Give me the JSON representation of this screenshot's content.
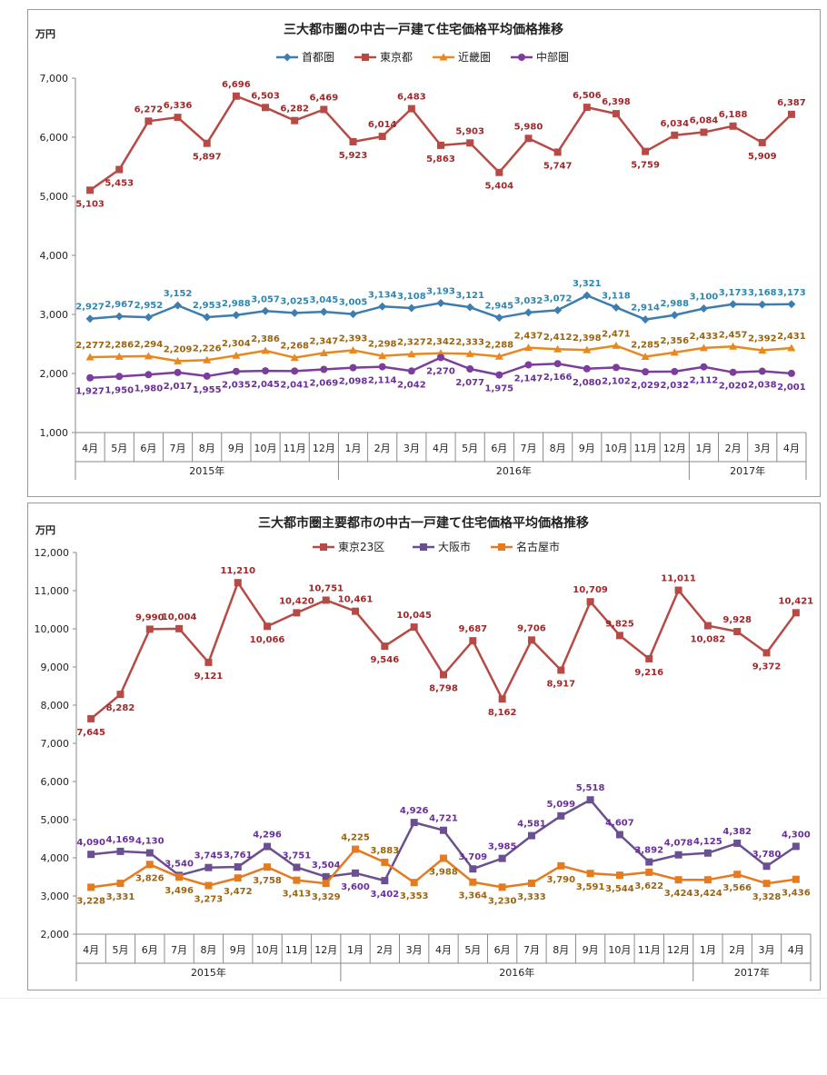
{
  "charts": [
    {
      "type": "line",
      "title": "三大都市圏の中古一戸建て住宅価格平均価格推移",
      "unit": "万円",
      "ylim": [
        1000,
        7000
      ],
      "yticks": [
        1000,
        2000,
        3000,
        4000,
        5000,
        6000,
        7000
      ],
      "ytick_labels": [
        "1,000",
        "2,000",
        "3,000",
        "4,000",
        "5,000",
        "6,000",
        "7,000"
      ],
      "categories": [
        "4月",
        "5月",
        "6月",
        "7月",
        "8月",
        "9月",
        "10月",
        "11月",
        "12月",
        "1月",
        "2月",
        "3月",
        "4月",
        "5月",
        "6月",
        "7月",
        "8月",
        "9月",
        "10月",
        "11月",
        "12月",
        "1月",
        "2月",
        "3月",
        "4月"
      ],
      "years": [
        {
          "label": "2015年",
          "count": 9
        },
        {
          "label": "2016年",
          "count": 12
        },
        {
          "label": "2017年",
          "count": 4
        }
      ],
      "legend_position": "top",
      "series": [
        {
          "name": "首都圏",
          "color": "#3E7DB0",
          "marker": "diamond",
          "label_color": "#2E86B0",
          "label_pos": "above",
          "values": [
            2927,
            2967,
            2952,
            3152,
            2953,
            2988,
            3057,
            3025,
            3045,
            3005,
            3134,
            3108,
            3193,
            3121,
            2945,
            3032,
            3072,
            3321,
            3118,
            2914,
            2988,
            3100,
            3173,
            3168,
            3173
          ],
          "labels": [
            "2,927",
            "2,967",
            "2,952",
            "3,152",
            "2,953",
            "2,988",
            "3,057",
            "3,025",
            "3,045",
            "3,005",
            "3,134",
            "3,108",
            "3,193",
            "3,121",
            "2,945",
            "3,032",
            "3,072",
            "3,321",
            "3,118",
            "2,914",
            "2,988",
            "3,100",
            "3,173",
            "3,168",
            "3,173"
          ]
        },
        {
          "name": "東京都",
          "color": "#B84A46",
          "marker": "square",
          "label_color": "#A0282A",
          "label_pos": [
            1,
            1,
            -1,
            -1,
            1,
            -1,
            -1,
            -1,
            -1,
            1,
            -1,
            -1,
            1,
            -1,
            1,
            -1,
            1,
            -1,
            -1,
            1,
            -1,
            -1,
            -1,
            1,
            -1
          ],
          "values": [
            5103,
            5453,
            6272,
            6336,
            5897,
            6696,
            6503,
            6282,
            6469,
            5923,
            6014,
            6483,
            5863,
            5903,
            5404,
            5980,
            5747,
            6506,
            6398,
            5759,
            6034,
            6084,
            6188,
            5909,
            6387
          ],
          "labels": [
            "5,103",
            "5,453",
            "6,272",
            "6,336",
            "5,897",
            "6,696",
            "6,503",
            "6,282",
            "6,469",
            "5,923",
            "6,014",
            "6,483",
            "5,863",
            "5,903",
            "5,404",
            "5,980",
            "5,747",
            "6,506",
            "6,398",
            "5,759",
            "6,034",
            "6,084",
            "6,188",
            "5,909",
            "6,387"
          ]
        },
        {
          "name": "近畿圏",
          "color": "#E8881E",
          "marker": "triangle",
          "label_color": "#9C6410",
          "label_pos": "above",
          "values": [
            2277,
            2286,
            2294,
            2209,
            2226,
            2304,
            2386,
            2268,
            2347,
            2393,
            2298,
            2327,
            2342,
            2333,
            2288,
            2437,
            2412,
            2398,
            2471,
            2285,
            2356,
            2433,
            2457,
            2392,
            2431
          ],
          "labels": [
            "2,277",
            "2,286",
            "2,294",
            "2,209",
            "2,226",
            "2,304",
            "2,386",
            "2,268",
            "2,347",
            "2,393",
            "2,298",
            "2,327",
            "2,342",
            "2,333",
            "2,288",
            "2,437",
            "2,412",
            "2,398",
            "2,471",
            "2,285",
            "2,356",
            "2,433",
            "2,457",
            "2,392",
            "2,431"
          ]
        },
        {
          "name": "中部圏",
          "color": "#7C3D9C",
          "marker": "circle",
          "label_color": "#6A2E9A",
          "label_pos": "below",
          "values": [
            1927,
            1950,
            1980,
            2017,
            1955,
            2035,
            2045,
            2041,
            2069,
            2098,
            2114,
            2042,
            2270,
            2077,
            1975,
            2147,
            2166,
            2080,
            2102,
            2029,
            2032,
            2112,
            2020,
            2038,
            2001
          ],
          "labels": [
            "1,927",
            "1,950",
            "1,980",
            "2,017",
            "1,955",
            "2,035",
            "2,045",
            "2,041",
            "2,069",
            "2,098",
            "2,114",
            "2,042",
            "2,270",
            "2,077",
            "1,975",
            "2,147",
            "2,166",
            "2,080",
            "2,102",
            "2,029",
            "2,032",
            "2,112",
            "2,020",
            "2,038",
            "2,001"
          ]
        }
      ]
    },
    {
      "type": "line",
      "title": "三大都市圏主要都市の中古一戸建て住宅価格平均価格推移",
      "unit": "万円",
      "ylim": [
        2000,
        12000
      ],
      "yticks": [
        2000,
        3000,
        4000,
        5000,
        6000,
        7000,
        8000,
        9000,
        10000,
        11000,
        12000
      ],
      "ytick_labels": [
        "2,000",
        "3,000",
        "4,000",
        "5,000",
        "6,000",
        "7,000",
        "8,000",
        "9,000",
        "10,000",
        "11,000",
        "12,000"
      ],
      "categories": [
        "4月",
        "5月",
        "6月",
        "7月",
        "8月",
        "9月",
        "10月",
        "11月",
        "12月",
        "1月",
        "2月",
        "3月",
        "4月",
        "5月",
        "6月",
        "7月",
        "8月",
        "9月",
        "10月",
        "11月",
        "12月",
        "1月",
        "2月",
        "3月",
        "4月"
      ],
      "years": [
        {
          "label": "2015年",
          "count": 9
        },
        {
          "label": "2016年",
          "count": 12
        },
        {
          "label": "2017年",
          "count": 4
        }
      ],
      "legend_position": "top",
      "series": [
        {
          "name": "東京23区",
          "color": "#B84A46",
          "marker": "square",
          "label_color": "#A0282A",
          "label_pos": [
            1,
            1,
            -1,
            -1,
            1,
            -1,
            1,
            -1,
            -1,
            -1,
            1,
            -1,
            1,
            -1,
            1,
            -1,
            1,
            -1,
            -1,
            1,
            -1,
            1,
            -1,
            1,
            -1
          ],
          "values": [
            7645,
            8282,
            9990,
            10004,
            9121,
            11210,
            10066,
            10420,
            10751,
            10461,
            9546,
            10045,
            8798,
            9687,
            8162,
            9706,
            8917,
            10709,
            9825,
            9216,
            11011,
            10082,
            9928,
            9372,
            10421
          ],
          "labels": [
            "7,645",
            "8,282",
            "9,990",
            "10,004",
            "9,121",
            "11,210",
            "10,066",
            "10,420",
            "10,751",
            "10,461",
            "9,546",
            "10,045",
            "8,798",
            "9,687",
            "8,162",
            "9,706",
            "8,917",
            "10,709",
            "9,825",
            "9,216",
            "11,011",
            "10,082",
            "9,928",
            "9,372",
            "10,421"
          ]
        },
        {
          "name": "大阪市",
          "color": "#6A4F91",
          "marker": "square",
          "label_color": "#6A2E9A",
          "label_pos": [
            -1,
            -1,
            -1,
            -1,
            -1,
            -1,
            -1,
            -1,
            -1,
            1,
            1,
            -1,
            -1,
            -1,
            -1,
            -1,
            -1,
            -1,
            -1,
            -1,
            -1,
            -1,
            -1,
            -1,
            -1
          ],
          "values": [
            4090,
            4169,
            4130,
            3540,
            3745,
            3761,
            4296,
            3751,
            3504,
            3600,
            3402,
            4926,
            4721,
            3709,
            3985,
            4581,
            5099,
            5518,
            4607,
            3892,
            4078,
            4125,
            4382,
            3780,
            4300
          ],
          "labels": [
            "4,090",
            "4,169",
            "4,130",
            "3,540",
            "3,745",
            "3,761",
            "4,296",
            "3,751",
            "3,504",
            "3,600",
            "3,402",
            "4,926",
            "4,721",
            "3,709",
            "3,985",
            "4,581",
            "5,099",
            "5,518",
            "4,607",
            "3,892",
            "4,078",
            "4,125",
            "4,382",
            "3,780",
            "4,300"
          ]
        },
        {
          "name": "名古屋市",
          "color": "#E67A1E",
          "marker": "square",
          "label_color": "#9C6410",
          "label_pos": [
            1,
            1,
            1,
            1,
            1,
            1,
            1,
            1,
            1,
            -1,
            -1,
            1,
            1,
            1,
            1,
            1,
            1,
            1,
            1,
            1,
            1,
            1,
            1,
            1,
            1
          ],
          "values": [
            3228,
            3331,
            3826,
            3496,
            3273,
            3472,
            3758,
            3413,
            3329,
            4225,
            3883,
            3353,
            3988,
            3364,
            3230,
            3333,
            3790,
            3591,
            3544,
            3622,
            3424,
            3424,
            3566,
            3328,
            3436
          ],
          "labels": [
            "3,228",
            "3,331",
            "3,826",
            "3,496",
            "3,273",
            "3,472",
            "3,758",
            "3,413",
            "3,329",
            "4,225",
            "3,883",
            "3,353",
            "3,988",
            "3,364",
            "3,230",
            "3,333",
            "3,790",
            "3,591",
            "3,544",
            "3,622",
            "3,424",
            "3,424",
            "3,566",
            "3,328",
            "3,436"
          ]
        }
      ]
    }
  ]
}
